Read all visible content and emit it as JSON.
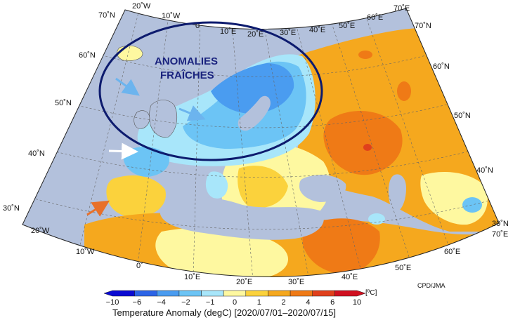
{
  "map": {
    "annotation_lines": [
      "ANOMALIES",
      "FRAÎCHES"
    ],
    "credit": "CPD/JMA",
    "caption": "Temperature Anomaly (degC) [2020/07/01–2020/07/15]",
    "unit": "[ºC]",
    "lon_labels_top": [
      "20˚W",
      "10˚W",
      "0",
      "10˚E",
      "20˚E",
      "30˚E",
      "40˚E",
      "50˚E",
      "60˚E",
      "70˚E"
    ],
    "lat_labels_left": [
      "70˚N",
      "60˚N",
      "50˚N",
      "40˚N",
      "30˚N"
    ],
    "lat_labels_right": [
      "70˚N",
      "60˚N",
      "50˚N",
      "40˚N",
      "30˚N"
    ],
    "lon_labels_bottom": [
      "20˚W",
      "10˚W",
      "0˚",
      "10˚E",
      "20˚E",
      "30˚E",
      "40˚E",
      "50˚E",
      "60˚E",
      "70˚E"
    ],
    "colorbar": {
      "ticks": [
        "−10",
        "−6",
        "−4",
        "−2",
        "−1",
        "0",
        "1",
        "2",
        "4",
        "6",
        "10"
      ],
      "colors": [
        "#0a0ad2",
        "#2c64e6",
        "#4a9cf0",
        "#6cc4f5",
        "#a8e6fa",
        "#fef8a0",
        "#fbd23c",
        "#f5a81e",
        "#ef7a16",
        "#e0401c",
        "#d01020"
      ]
    },
    "colors": {
      "ocean": "#b3c1dc",
      "cool_light": "#a8e6fa",
      "cool_mid": "#6cc4f5",
      "cool_dark": "#4a9cf0",
      "warm_light": "#fef8a0",
      "warm_mid": "#fbd23c",
      "warm_orange": "#f5a81e",
      "warm_deep": "#ef7a16",
      "warm_red": "#e0401c",
      "ellipse": "#0d1b6e"
    },
    "arrows": [
      {
        "name": "arrow-atlantic-north",
        "color": "#6cb4ee"
      },
      {
        "name": "arrow-north-sea",
        "color": "#6cb4ee"
      },
      {
        "name": "arrow-bay-of-biscay",
        "color": "#ffffff"
      },
      {
        "name": "arrow-iberia",
        "color": "#e8702a"
      }
    ]
  }
}
